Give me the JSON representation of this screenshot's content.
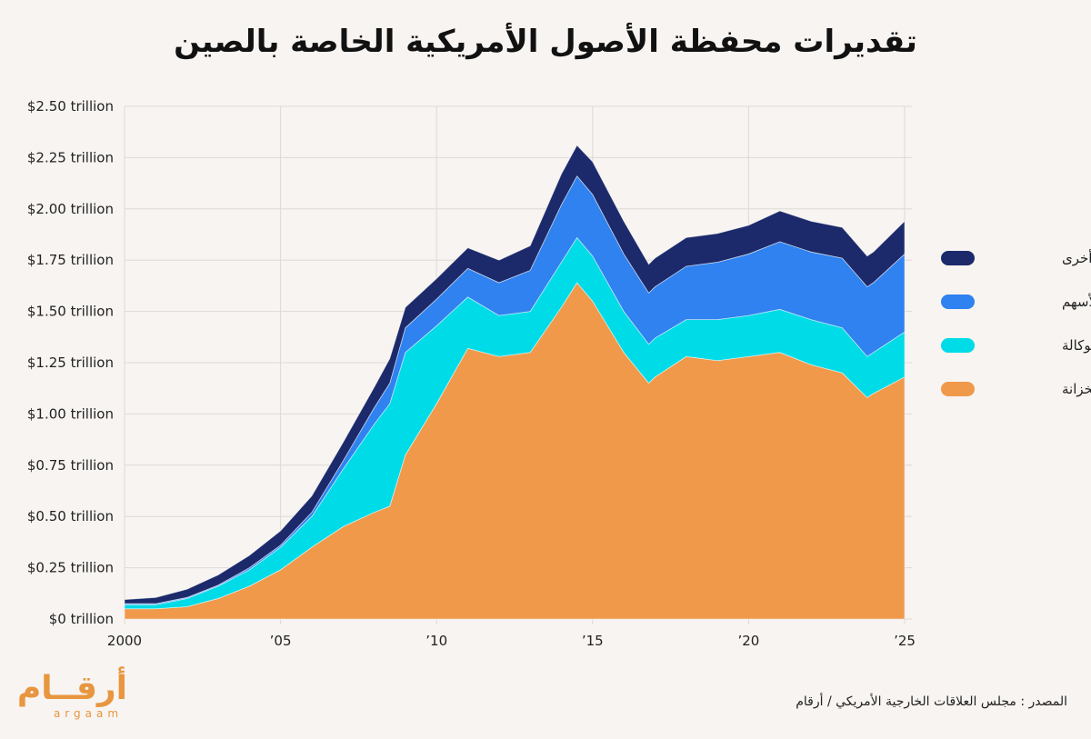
{
  "title": "تقديرات محفظة الأصول الأمريكية الخاصة بالصين",
  "source": "المصدر :  مجلس العلاقات الخارجية الأمريكي / أرقام",
  "logo": {
    "arabic": "أرقــام",
    "latin": "argaam"
  },
  "colors": {
    "background": "#f7f4f1",
    "treasury": "#f0994a",
    "agency": "#00dbe8",
    "equities": "#2f82ef",
    "other": "#1c2a6b",
    "grid": "#dddad6",
    "brand": "#e8963f"
  },
  "chart_data": {
    "type": "area",
    "stacked": true,
    "x_range": [
      2000,
      2025
    ],
    "ylim": [
      0,
      2.5
    ],
    "y_ticks": [
      {
        "value": 2.5,
        "label": "$2.50 trillion"
      },
      {
        "value": 2.25,
        "label": "$2.25 trillion"
      },
      {
        "value": 2.0,
        "label": "$2.00 trillion"
      },
      {
        "value": 1.75,
        "label": "$1.75 trillion"
      },
      {
        "value": 1.5,
        "label": "$1.50 trillion"
      },
      {
        "value": 1.25,
        "label": "$1.25 trillion"
      },
      {
        "value": 1.0,
        "label": "$1.00 trillion"
      },
      {
        "value": 0.75,
        "label": "$0.75 trillion"
      },
      {
        "value": 0.5,
        "label": "$0.50 trillion"
      },
      {
        "value": 0.25,
        "label": "$0.25 trillion"
      },
      {
        "value": 0,
        "label": "$0 trillion"
      }
    ],
    "x_ticks": [
      {
        "value": 2000,
        "label": "2000"
      },
      {
        "value": 2005,
        "label": "’05"
      },
      {
        "value": 2010,
        "label": "’10"
      },
      {
        "value": 2015,
        "label": "’15"
      },
      {
        "value": 2020,
        "label": "’20"
      },
      {
        "value": 2025,
        "label": "’25"
      }
    ],
    "grid": true,
    "legend_position": "right",
    "x": [
      2000,
      2001,
      2002,
      2003,
      2004,
      2005,
      2006,
      2007,
      2008,
      2008.5,
      2009,
      2010,
      2011,
      2012,
      2013,
      2014,
      2014.5,
      2015,
      2016,
      2016.8,
      2017,
      2018,
      2019,
      2020,
      2021,
      2022,
      2023,
      2023.8,
      2024,
      2025
    ],
    "series": [
      {
        "name": "ديون الخزانة",
        "color": "#f0994a",
        "values": [
          0.05,
          0.05,
          0.06,
          0.1,
          0.16,
          0.24,
          0.35,
          0.45,
          0.52,
          0.55,
          0.8,
          1.05,
          1.32,
          1.28,
          1.3,
          1.52,
          1.64,
          1.55,
          1.3,
          1.15,
          1.18,
          1.28,
          1.26,
          1.28,
          1.3,
          1.24,
          1.2,
          1.08,
          1.1,
          1.18
        ]
      },
      {
        "name": "ديون الوكالة",
        "color": "#00dbe8",
        "values": [
          0.02,
          0.02,
          0.04,
          0.06,
          0.08,
          0.11,
          0.15,
          0.28,
          0.43,
          0.5,
          0.5,
          0.38,
          0.25,
          0.2,
          0.2,
          0.22,
          0.22,
          0.22,
          0.2,
          0.19,
          0.19,
          0.18,
          0.2,
          0.2,
          0.21,
          0.22,
          0.22,
          0.2,
          0.2,
          0.22
        ]
      },
      {
        "name": "الأسهم",
        "color": "#2f82ef",
        "values": [
          0.005,
          0.005,
          0.005,
          0.005,
          0.01,
          0.01,
          0.02,
          0.04,
          0.08,
          0.1,
          0.12,
          0.13,
          0.14,
          0.16,
          0.2,
          0.28,
          0.3,
          0.3,
          0.28,
          0.25,
          0.25,
          0.26,
          0.28,
          0.3,
          0.33,
          0.33,
          0.34,
          0.34,
          0.34,
          0.38
        ]
      },
      {
        "name": "أخرى",
        "color": "#1c2a6b",
        "values": [
          0.02,
          0.03,
          0.04,
          0.05,
          0.06,
          0.07,
          0.08,
          0.09,
          0.1,
          0.12,
          0.1,
          0.1,
          0.1,
          0.11,
          0.12,
          0.15,
          0.15,
          0.16,
          0.16,
          0.14,
          0.14,
          0.14,
          0.14,
          0.14,
          0.15,
          0.15,
          0.15,
          0.15,
          0.15,
          0.16
        ]
      }
    ],
    "legend_order": [
      "أخرى",
      "الأسهم",
      "ديون الوكالة",
      "ديون الخزانة"
    ]
  }
}
